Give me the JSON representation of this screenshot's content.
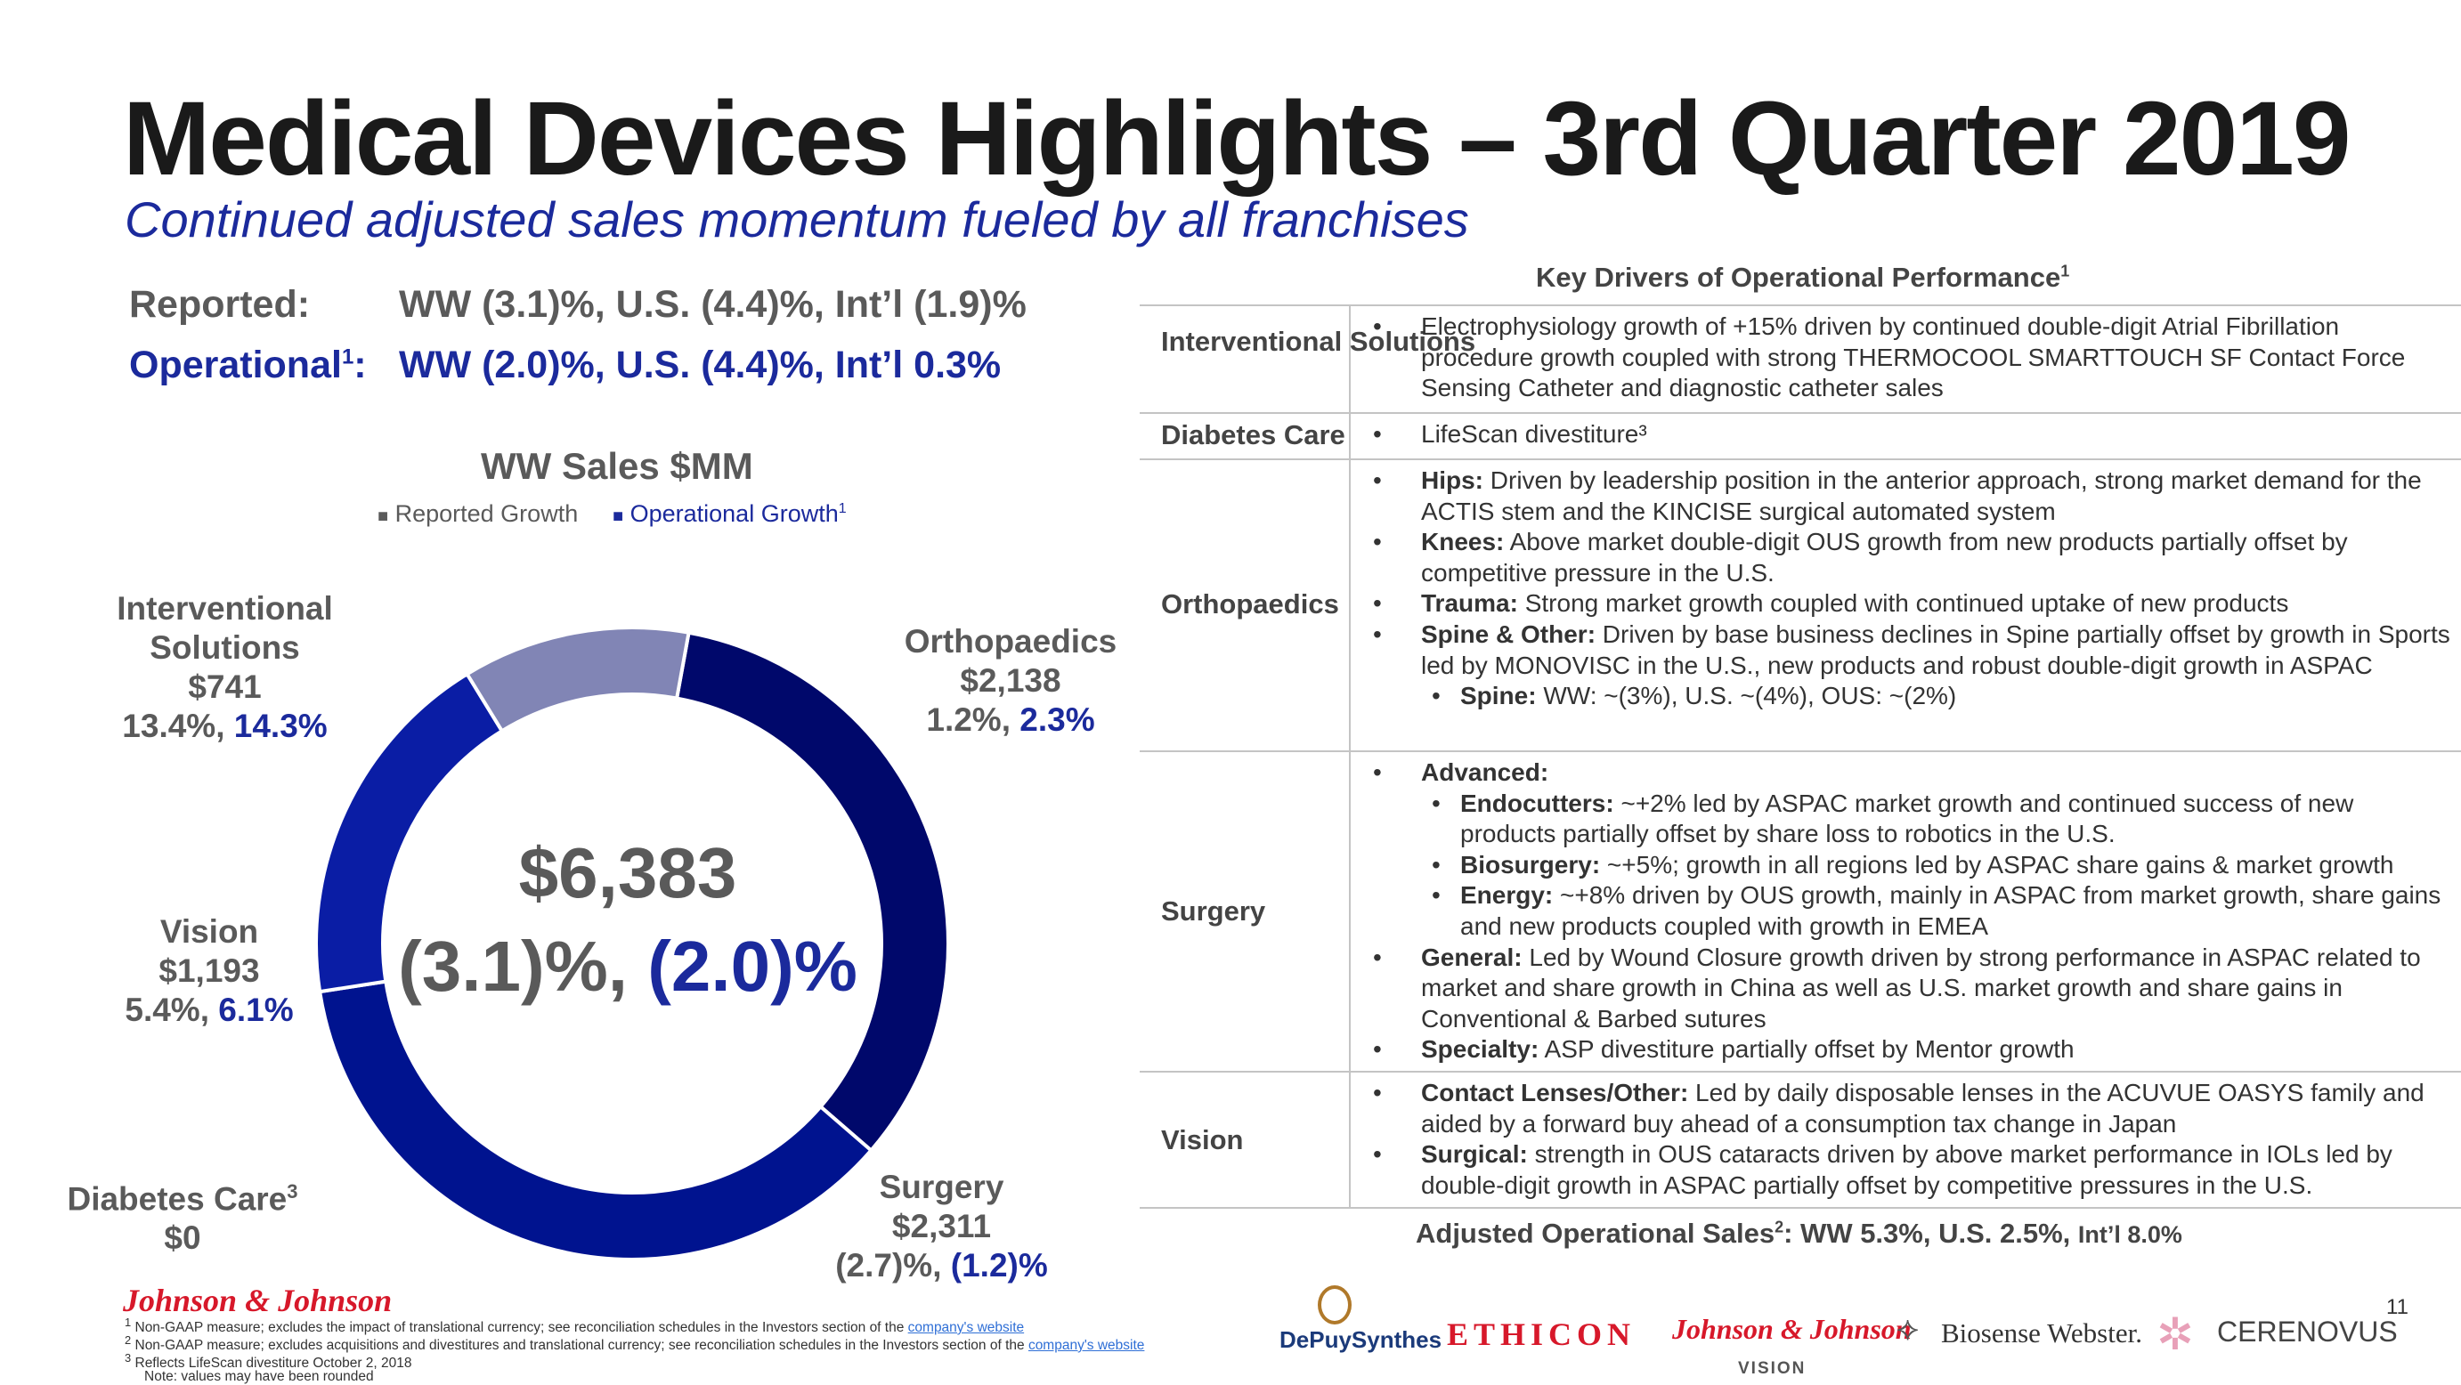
{
  "title": "Medical Devices Highlights – 3rd Quarter 2019",
  "subtitle": "Continued adjusted sales momentum fueled by all franchises",
  "summary": {
    "reported_label": "Reported:",
    "reported_value": "WW (3.1)%, U.S. (4.4)%, Int’l (1.9)%",
    "operational_label": "Operational",
    "operational_sup": "1",
    "operational_colon": ":",
    "operational_value": "WW (2.0)%, U.S. (4.4)%, Int’l  0.3%"
  },
  "chart_data": {
    "type": "pie",
    "title": "WW Sales $MM",
    "legend": [
      {
        "label": "Reported Growth",
        "color": "#6b6b6b"
      },
      {
        "label": "Operational Growth",
        "sup": "1",
        "color": "#1b2a9c"
      }
    ],
    "center_value": "$6,383",
    "center_reported": "(3.1)%,",
    "center_operational": "(2.0)%",
    "slices": [
      {
        "name": "Orthopaedics",
        "value": 2138,
        "color": "#00086b"
      },
      {
        "name": "Surgery",
        "value": 2311,
        "color": "#00138f"
      },
      {
        "name": "Diabetes Care",
        "value": 0,
        "color": "#0a1da5"
      },
      {
        "name": "Vision",
        "value": 1193,
        "color": "#0a1da5"
      },
      {
        "name": "Interventional Solutions",
        "value": 741,
        "color": "#8185b5"
      }
    ],
    "labels": {
      "interventional": {
        "line1": "Interventional",
        "line2": "Solutions",
        "value": "$741",
        "reported": "13.4%,",
        "operational": "14.3%"
      },
      "orthopaedics": {
        "line1": "Orthopaedics",
        "value": "$2,138",
        "reported": "1.2%,",
        "operational": "2.3%"
      },
      "vision": {
        "line1": "Vision",
        "value": "$1,193",
        "reported": "5.4%,",
        "operational": "6.1%"
      },
      "diabetes": {
        "line1": "Diabetes Care",
        "sup": "3",
        "value": "$0"
      },
      "surgery": {
        "line1": "Surgery",
        "value": "$2,311",
        "reported": "(2.7)%,",
        "operational": "(1.2)%"
      }
    }
  },
  "drivers": {
    "title": "Key Drivers of Operational Performance",
    "title_sup": "1",
    "rows": [
      {
        "category": "Interventional Solutions",
        "bullets": [
          {
            "bold": "",
            "text": "Electrophysiology growth of +15% driven by continued double-digit Atrial Fibrillation procedure growth coupled with strong THERMOCOOL SMARTTOUCH SF Contact Force Sensing Catheter and diagnostic catheter sales"
          }
        ]
      },
      {
        "category": "Diabetes Care",
        "bullets": [
          {
            "bold": "",
            "text": "LifeScan divestiture³"
          }
        ]
      },
      {
        "category": "Orthopaedics",
        "bullets": [
          {
            "bold": "Hips:",
            "text": " Driven by leadership position in the anterior approach, strong market demand for the ACTIS stem and the KINCISE surgical automated system"
          },
          {
            "bold": "Knees:",
            "text": " Above market double-digit OUS growth from new products partially offset by competitive pressure in the U.S."
          },
          {
            "bold": "Trauma:",
            "text": " Strong market growth coupled with continued uptake of new products"
          },
          {
            "bold": "Spine & Other:",
            "text": " Driven by base business declines in Spine partially offset by growth in Sports led by MONOVISC in the U.S., new products and robust double-digit growth in ASPAC"
          },
          {
            "bold": "Spine:",
            "text": " WW: ~(3%), U.S. ~(4%), OUS: ~(2%)",
            "sub": true
          }
        ]
      },
      {
        "category": "Surgery",
        "bullets": [
          {
            "bold": "Advanced:",
            "text": ""
          },
          {
            "bold": "Endocutters:",
            "text": " ~+2% led by ASPAC market growth and continued success of new products partially offset by share loss to robotics in the U.S.",
            "sub": true
          },
          {
            "bold": "Biosurgery:",
            "text": " ~+5%; growth in all regions led by ASPAC share gains & market growth",
            "sub": true
          },
          {
            "bold": "Energy:",
            "text": " ~+8% driven by OUS growth, mainly in ASPAC from market growth, share gains and new products coupled with growth in EMEA",
            "sub": true
          },
          {
            "bold": "General:",
            "text": " Led by Wound Closure growth driven by strong performance in ASPAC related to market and share growth in China as well as U.S. market growth and share gains in Conventional & Barbed sutures"
          },
          {
            "bold": "Specialty:",
            "text": " ASP divestiture partially offset by Mentor growth"
          }
        ]
      },
      {
        "category": "Vision",
        "bullets": [
          {
            "bold": "Contact Lenses/Other:",
            "text": " Led by daily disposable lenses in the ACUVUE OASYS family and aided by a forward buy ahead of a consumption tax change in Japan"
          },
          {
            "bold": "Surgical:",
            "text": " strength in OUS cataracts driven by above market performance in IOLs led by double-digit growth in ASPAC partially offset by competitive pressures in the U.S."
          }
        ]
      }
    ],
    "adjusted_label": "Adjusted Operational Sales",
    "adjusted_sup": "2",
    "adjusted_value": ": WW 5.3%, U.S. 2.5%, ",
    "adjusted_intl": "Int’l 8.0%"
  },
  "footer": {
    "logo": "Johnson & Johnson",
    "notes": [
      {
        "sup": "1",
        "text": " Non-GAAP measure; excludes the impact of translational currency; see reconciliation schedules in the Investors section of the ",
        "link": "company's website"
      },
      {
        "sup": "2",
        "text": " Non-GAAP measure; excludes acquisitions and divestitures and translational currency; see reconciliation schedules in the Investors section of the ",
        "link": "company's website"
      },
      {
        "sup": "3",
        "text": " Reflects LifeScan divestiture October 2, 2018",
        "link": ""
      },
      {
        "sup": "",
        "text": "Note: values may have been rounded",
        "link": ""
      }
    ],
    "page_number": "11",
    "brands": {
      "depuy": "DePuySynthes",
      "ethicon": "ETHICON",
      "jj_vision": "Johnson & Johnson",
      "vision": "VISION",
      "biosense": "Biosense Webster.",
      "cerenovus": "CERENOVUS"
    }
  }
}
